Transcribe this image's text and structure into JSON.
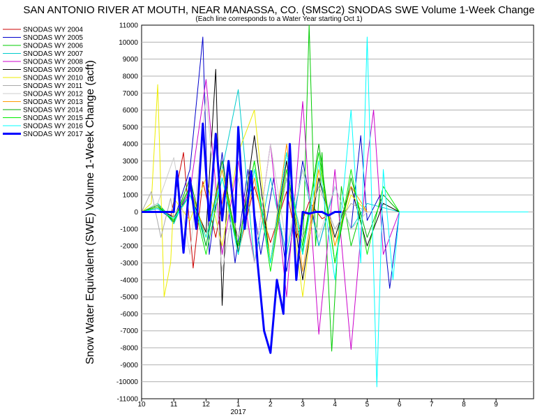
{
  "chart_data": {
    "type": "line",
    "title": "SAN ANTONIO RIVER AT MOUTH, NEAR MANASSA, CO. (SMSC2) SNODAS SWE Volume 1-Week Change",
    "subtitle": "(Each line corresponds to a Water Year starting Oct 1)",
    "xlabel": "",
    "ylabel": "Snow Water Equivalent (SWE) Volume 1-Week Change (acft)",
    "x_ticks": [
      "10",
      "11",
      "12",
      "1",
      "2",
      "3",
      "4",
      "5",
      "6",
      "7",
      "8",
      "9"
    ],
    "x_year_label": "2017",
    "ylim": [
      -11000,
      11000
    ],
    "y_ticks": [
      11000,
      10000,
      9000,
      8000,
      7000,
      6000,
      5000,
      4000,
      3000,
      2000,
      1000,
      0,
      -1000,
      -2000,
      -3000,
      -4000,
      -5000,
      -6000,
      -7000,
      -8000,
      -9000,
      -10000,
      -11000
    ],
    "grid": true,
    "legend_position": "left",
    "series": [
      {
        "name": "SNODAS WY 2004",
        "color": "#cc0000",
        "x": [
          1.0,
          1.5,
          1.9,
          2.3,
          2.6,
          2.9,
          3.3,
          3.7,
          4.0,
          4.5,
          5.0,
          5.5,
          5.8,
          6.2,
          6.6,
          7.0
        ],
        "values": [
          0,
          200,
          -300,
          3500,
          -3300,
          1800,
          -1500,
          2600,
          -2400,
          1500,
          -1800,
          1200,
          -1500,
          600,
          -400,
          0
        ]
      },
      {
        "name": "SNODAS WY 2005",
        "color": "#0000cc",
        "x": [
          1.0,
          1.5,
          2.0,
          2.5,
          2.9,
          3.1,
          3.5,
          3.9,
          4.3,
          4.7,
          5.1,
          5.5,
          6.0,
          6.5,
          7.0,
          7.5,
          7.8,
          8.0,
          8.4,
          8.7,
          9.0
        ],
        "values": [
          0,
          200,
          -500,
          2500,
          10300,
          -2500,
          3500,
          -3000,
          2500,
          -2500,
          2000,
          -3500,
          3000,
          -2000,
          1500,
          -1000,
          4500,
          -500,
          1000,
          -4500,
          0
        ]
      },
      {
        "name": "SNODAS WY 2006",
        "color": "#00cc00",
        "x": [
          1.0,
          1.5,
          2.0,
          2.5,
          3.0,
          3.5,
          4.0,
          4.5,
          5.0,
          5.5,
          6.0,
          6.2,
          6.4,
          6.6,
          6.9,
          7.2,
          7.5,
          7.8
        ],
        "values": [
          0,
          500,
          -500,
          1000,
          -1500,
          2500,
          -2000,
          3000,
          -3000,
          2000,
          -2500,
          11000,
          -2000,
          3500,
          -8200,
          1500,
          -2000,
          0
        ]
      },
      {
        "name": "SNODAS WY 2007",
        "color": "#00cccc",
        "x": [
          1.0,
          1.5,
          2.0,
          2.5,
          3.0,
          3.5,
          4.0,
          4.5,
          5.0,
          5.5,
          6.0,
          6.5,
          7.0,
          7.5,
          8.0,
          9.0
        ],
        "values": [
          0,
          500,
          -700,
          1500,
          -2000,
          2500,
          7200,
          -3000,
          2000,
          -2500,
          2500,
          -2000,
          1500,
          -1000,
          500,
          0
        ]
      },
      {
        "name": "SNODAS WY 2008",
        "color": "#cc00cc",
        "x": [
          1.0,
          1.5,
          2.0,
          2.5,
          3.0,
          3.5,
          4.0,
          4.5,
          5.0,
          5.5,
          6.0,
          6.5,
          7.0,
          7.5,
          8.0,
          8.2,
          8.5,
          9.0
        ],
        "values": [
          0,
          300,
          -400,
          1200,
          7800,
          -2500,
          3000,
          -3000,
          4000,
          -5000,
          6500,
          -7200,
          2500,
          -8100,
          3000,
          6000,
          -2500,
          0
        ]
      },
      {
        "name": "SNODAS WY 2009",
        "color": "#000000",
        "x": [
          1.0,
          1.5,
          2.0,
          2.5,
          3.0,
          3.3,
          3.5,
          3.7,
          4.0,
          4.5,
          5.0,
          5.5,
          6.0,
          6.5,
          7.0,
          7.5,
          8.0,
          8.5,
          9.0
        ],
        "values": [
          0,
          200,
          -300,
          1000,
          -1200,
          8400,
          -5500,
          3000,
          -2500,
          4500,
          -3000,
          3000,
          -4000,
          2000,
          -1500,
          1500,
          -2000,
          500,
          0
        ]
      },
      {
        "name": "SNODAS WY 2010",
        "color": "#eeee00",
        "x": [
          1.0,
          1.3,
          1.5,
          1.7,
          1.9,
          2.0,
          2.5,
          3.0,
          3.5,
          4.0,
          4.5,
          5.0,
          5.5,
          6.0,
          6.5,
          7.0,
          7.5,
          8.0
        ],
        "values": [
          0,
          500,
          7500,
          -5000,
          -3000,
          800,
          -500,
          2000,
          -2000,
          3500,
          6000,
          -3000,
          2500,
          -5000,
          3000,
          -2000,
          1000,
          0
        ]
      },
      {
        "name": "SNODAS WY 2011",
        "color": "#aaaaaa",
        "x": [
          1.0,
          1.3,
          1.6,
          1.9,
          2.0,
          2.5,
          3.0,
          3.5,
          4.0,
          4.5,
          5.0,
          5.5,
          6.0,
          6.5,
          7.0,
          7.5,
          8.0
        ],
        "values": [
          0,
          1200,
          -1500,
          800,
          -300,
          1500,
          -1500,
          2000,
          -1500,
          2500,
          -3000,
          2000,
          -1500,
          1500,
          -1000,
          500,
          0
        ]
      },
      {
        "name": "SNODAS WY 2012",
        "color": "#cccccc",
        "x": [
          1.0,
          1.5,
          2.0,
          2.5,
          3.0,
          3.5,
          4.0,
          4.5,
          5.0,
          5.5,
          6.0,
          6.5,
          7.0,
          7.5,
          8.0
        ],
        "values": [
          0,
          500,
          3200,
          -2500,
          6800,
          -3500,
          2000,
          -3000,
          4000,
          -2000,
          2500,
          -1500,
          1500,
          -1000,
          0
        ]
      },
      {
        "name": "SNODAS WY 2013",
        "color": "#ff9900",
        "x": [
          1.0,
          1.5,
          2.0,
          2.5,
          3.0,
          3.5,
          4.0,
          4.5,
          5.0,
          5.5,
          6.0,
          6.5,
          7.0,
          7.5,
          8.0
        ],
        "values": [
          0,
          300,
          -500,
          1500,
          -1500,
          2500,
          -2500,
          2000,
          -3000,
          4000,
          -3500,
          2500,
          -2000,
          1500,
          0
        ]
      },
      {
        "name": "SNODAS WY 2014",
        "color": "#00aa00",
        "x": [
          1.0,
          1.5,
          2.0,
          2.5,
          3.0,
          3.5,
          4.0,
          4.5,
          5.0,
          5.5,
          6.0,
          6.5,
          7.0,
          7.5,
          8.0,
          8.5,
          9.0
        ],
        "values": [
          0,
          400,
          -600,
          2000,
          -2000,
          3000,
          -2500,
          2500,
          -3000,
          3500,
          -2500,
          4000,
          -3000,
          2000,
          -1500,
          1000,
          0
        ]
      },
      {
        "name": "SNODAS WY 2015",
        "color": "#00ee00",
        "x": [
          1.0,
          1.5,
          2.0,
          2.5,
          3.0,
          3.5,
          4.0,
          4.5,
          5.0,
          5.5,
          6.0,
          6.5,
          7.0,
          7.5,
          8.0,
          8.5,
          9.0
        ],
        "values": [
          0,
          300,
          -500,
          1500,
          -2500,
          2000,
          -2000,
          3000,
          -3500,
          2500,
          -2000,
          3500,
          -3000,
          2500,
          -2500,
          1500,
          0
        ]
      },
      {
        "name": "SNODAS WY 2016",
        "color": "#00ffff",
        "x": [
          1.0,
          1.5,
          2.0,
          2.5,
          3.0,
          3.5,
          4.0,
          4.5,
          5.0,
          5.5,
          6.0,
          6.5,
          7.0,
          7.5,
          7.8,
          8.0,
          8.3,
          8.5,
          8.8,
          9.0,
          10.0,
          13.0
        ],
        "values": [
          0,
          200,
          -400,
          1000,
          -1500,
          2000,
          -2500,
          2500,
          -3000,
          3500,
          -2500,
          3000,
          -4000,
          6000,
          -3000,
          10300,
          -10300,
          2500,
          -4000,
          0,
          0,
          0
        ]
      },
      {
        "name": "SNODAS WY 2017",
        "color": "#0000ff",
        "bold": true,
        "x": [
          1.0,
          2.0,
          2.1,
          2.3,
          2.5,
          2.7,
          2.9,
          3.1,
          3.3,
          3.5,
          3.7,
          3.9,
          4.0,
          4.2,
          4.4,
          4.6,
          4.8,
          5.0,
          5.2,
          5.4,
          5.6,
          5.8,
          6.0,
          6.2,
          6.4,
          6.6,
          6.8,
          7.0,
          7.2
        ],
        "values": [
          0,
          0,
          2400,
          -2400,
          2000,
          -1000,
          5200,
          -500,
          4600,
          -500,
          3000,
          -600,
          5000,
          -1000,
          2400,
          -3000,
          -7000,
          -8300,
          -4000,
          -6000,
          4000,
          -4000,
          0,
          -100,
          0,
          0,
          -200,
          0,
          0
        ]
      }
    ]
  }
}
